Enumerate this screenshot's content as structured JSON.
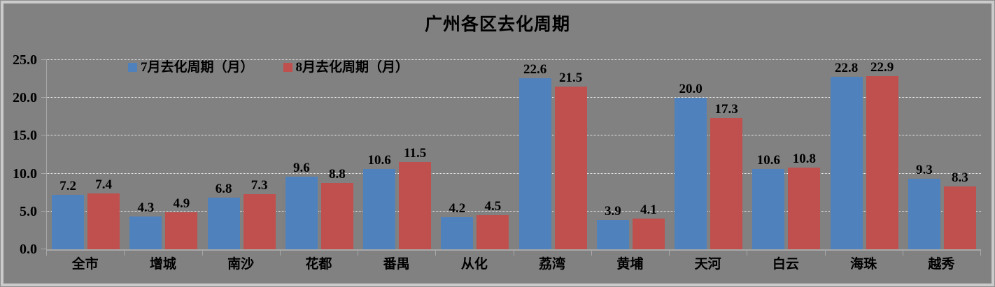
{
  "chart_data": {
    "type": "bar",
    "title": "广州各区去化周期",
    "categories": [
      "全市",
      "增城",
      "南沙",
      "花都",
      "番禺",
      "从化",
      "荔湾",
      "黄埔",
      "天河",
      "白云",
      "海珠",
      "越秀"
    ],
    "series": [
      {
        "name": "7月去化周期（月）",
        "color": "#4F81BD",
        "values": [
          7.2,
          4.3,
          6.8,
          9.6,
          10.6,
          4.2,
          22.6,
          3.9,
          20.0,
          10.6,
          22.8,
          9.3
        ]
      },
      {
        "name": "8月去化周期（月）",
        "color": "#C0504D",
        "values": [
          7.4,
          4.9,
          7.3,
          8.8,
          11.5,
          4.5,
          21.5,
          4.1,
          17.3,
          10.8,
          22.9,
          8.3
        ]
      }
    ],
    "ylim": [
      0,
      25
    ],
    "yticks": [
      "0.0",
      "5.0",
      "10.0",
      "15.0",
      "20.0",
      "25.0"
    ],
    "grid": true,
    "gridline_style": "dotted-white",
    "legend_position": "top-left-inside",
    "value_labels": "above-bars",
    "value_label_decimals": 1
  },
  "colors": {
    "background": "#818181",
    "frame_border": "#CBCBCB",
    "gridline": "#F2F2F2",
    "axis_line": "#A8A8A8",
    "text": "#000000",
    "series_july": "#4F81BD",
    "series_august": "#C0504D"
  }
}
